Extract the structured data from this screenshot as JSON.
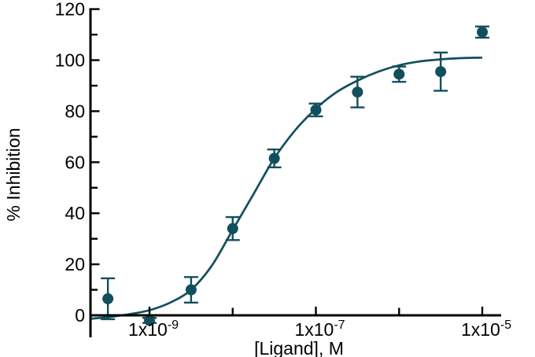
{
  "chart_data": {
    "type": "scatter",
    "subtype": "dose-response-curve-with-sigmoidal-fit",
    "title": "",
    "xlabel": "[Ligand], M",
    "ylabel": "% Inhibition",
    "x_scale": "log10",
    "x_axis_range_log": [
      -9.72,
      -4.77
    ],
    "ylim": [
      -9,
      120
    ],
    "grid": false,
    "legend": "none",
    "colors": {
      "series": "#124f5c",
      "axis": "#000000",
      "background": "#ffffff"
    },
    "y_major_ticks": [
      0,
      20,
      40,
      60,
      80,
      100,
      120
    ],
    "y_minor_ticks": [
      10,
      30,
      50,
      70,
      90,
      110
    ],
    "x_ticks": [
      {
        "log": -9,
        "labeled": true,
        "mantissa": "1x10",
        "exp": "-9"
      },
      {
        "log": -8,
        "labeled": false,
        "mantissa": "",
        "exp": ""
      },
      {
        "log": -7,
        "labeled": true,
        "mantissa": "1x10",
        "exp": "-7"
      },
      {
        "log": -6,
        "labeled": false,
        "mantissa": "",
        "exp": ""
      },
      {
        "log": -5,
        "labeled": true,
        "mantissa": "1x10",
        "exp": "-5"
      }
    ],
    "points": [
      {
        "conc_M": 3.16e-10,
        "log_conc": -9.5,
        "y": 6.5,
        "err": 8
      },
      {
        "conc_M": 1e-09,
        "log_conc": -9.0,
        "y": -2,
        "err": 1
      },
      {
        "conc_M": 3.16e-09,
        "log_conc": -8.5,
        "y": 10,
        "err": 5
      },
      {
        "conc_M": 1e-08,
        "log_conc": -8.0,
        "y": 34,
        "err": 4.5
      },
      {
        "conc_M": 3.16e-08,
        "log_conc": -7.5,
        "y": 61.5,
        "err": 3.5
      },
      {
        "conc_M": 1e-07,
        "log_conc": -7.0,
        "y": 80.5,
        "err": 2.5
      },
      {
        "conc_M": 3.16e-07,
        "log_conc": -6.5,
        "y": 87.5,
        "err": 6
      },
      {
        "conc_M": 1e-06,
        "log_conc": -6.0,
        "y": 94.5,
        "err": 3
      },
      {
        "conc_M": 3.16e-06,
        "log_conc": -5.5,
        "y": 95.5,
        "err": 7.5
      },
      {
        "conc_M": 1e-05,
        "log_conc": -5.0,
        "y": 111,
        "err": 2.2
      }
    ],
    "fit_curve": {
      "description": "sigmoidal fit, bottom ~ -2, top ~ 101, EC50 ~ 2e-8 M",
      "samples": [
        [
          -9.72,
          -1.4
        ],
        [
          -9.5,
          -0.7
        ],
        [
          -9.25,
          0.4
        ],
        [
          -9.0,
          2.0
        ],
        [
          -8.75,
          5.0
        ],
        [
          -8.5,
          10.0
        ],
        [
          -8.25,
          19.5
        ],
        [
          -8.0,
          33.5
        ],
        [
          -7.75,
          47.5
        ],
        [
          -7.5,
          61.5
        ],
        [
          -7.25,
          72.5
        ],
        [
          -7.0,
          81.0
        ],
        [
          -6.75,
          87.5
        ],
        [
          -6.5,
          92.0
        ],
        [
          -6.25,
          95.5
        ],
        [
          -6.0,
          98.0
        ],
        [
          -5.75,
          99.5
        ],
        [
          -5.5,
          100.3
        ],
        [
          -5.25,
          100.8
        ],
        [
          -5.0,
          101.0
        ]
      ]
    }
  }
}
